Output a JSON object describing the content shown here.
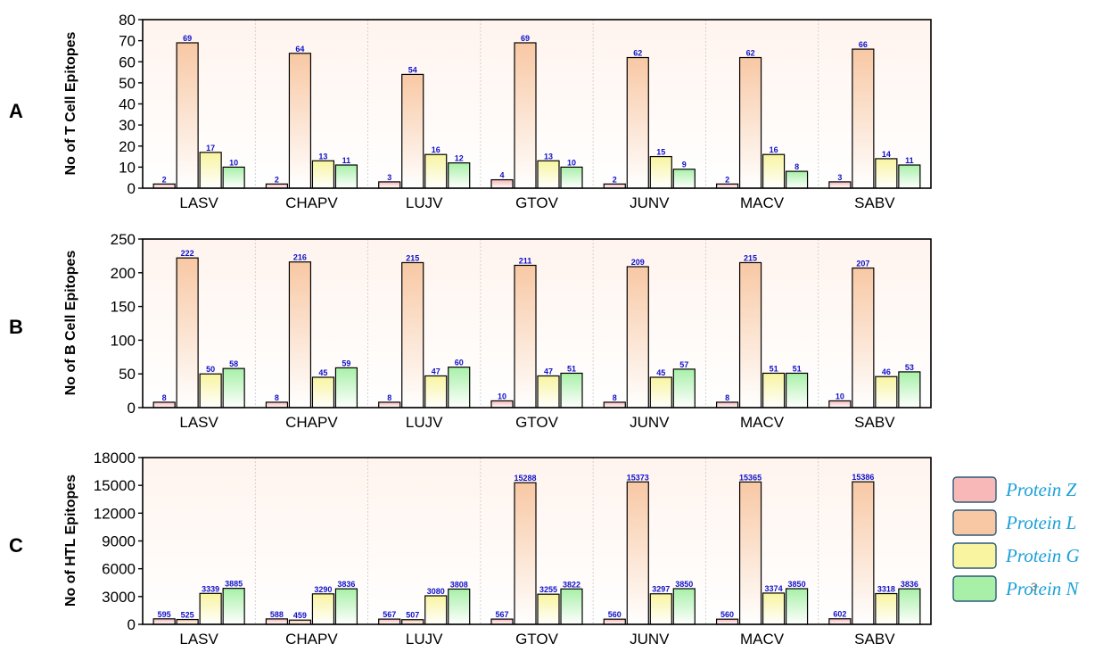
{
  "page_number": "3",
  "colors": {
    "Protein Z": "#f8b8b8",
    "Protein L": "#f8c8a4",
    "Protein G": "#f8f4a0",
    "Protein N": "#a8f0a8",
    "label": "#1010c8",
    "legend_text": "#1aa0d8"
  },
  "legend": [
    "Protein Z",
    "Protein L",
    "Protein G",
    "Protein N"
  ],
  "chart_data": [
    {
      "type": "bar",
      "panel": "A",
      "ylabel": "No of T Cell Epitopes",
      "categories": [
        "LASV",
        "CHAPV",
        "LUJV",
        "GTOV",
        "JUNV",
        "MACV",
        "SABV"
      ],
      "ylim": [
        0,
        80
      ],
      "yticks": [
        0,
        10,
        20,
        30,
        40,
        50,
        60,
        70,
        80
      ],
      "series": [
        {
          "name": "Protein Z",
          "values": [
            2,
            2,
            3,
            4,
            2,
            2,
            3
          ]
        },
        {
          "name": "Protein L",
          "values": [
            69,
            64,
            54,
            69,
            62,
            62,
            66
          ]
        },
        {
          "name": "Protein G",
          "values": [
            17,
            13,
            16,
            13,
            15,
            16,
            14
          ]
        },
        {
          "name": "Protein N",
          "values": [
            10,
            11,
            12,
            10,
            9,
            8,
            11
          ]
        }
      ]
    },
    {
      "type": "bar",
      "panel": "B",
      "ylabel": "No of B Cell Epitopes",
      "categories": [
        "LASV",
        "CHAPV",
        "LUJV",
        "GTOV",
        "JUNV",
        "MACV",
        "SABV"
      ],
      "ylim": [
        0,
        250
      ],
      "yticks": [
        0,
        50,
        100,
        150,
        200,
        250
      ],
      "series": [
        {
          "name": "Protein Z",
          "values": [
            8,
            8,
            8,
            10,
            8,
            8,
            10
          ]
        },
        {
          "name": "Protein L",
          "values": [
            222,
            216,
            215,
            211,
            209,
            215,
            207
          ]
        },
        {
          "name": "Protein G",
          "values": [
            50,
            45,
            47,
            47,
            45,
            51,
            46
          ]
        },
        {
          "name": "Protein N",
          "values": [
            58,
            59,
            60,
            51,
            57,
            51,
            53
          ]
        }
      ]
    },
    {
      "type": "bar",
      "panel": "C",
      "ylabel": "No of HTL Epitopes",
      "categories": [
        "LASV",
        "CHAPV",
        "LUJV",
        "GTOV",
        "JUNV",
        "MACV",
        "SABV"
      ],
      "ylim": [
        0,
        18000
      ],
      "yticks": [
        0,
        3000,
        6000,
        9000,
        12000,
        15000,
        18000
      ],
      "series": [
        {
          "name": "Protein Z",
          "values": [
            595,
            588,
            567,
            567,
            560,
            560,
            602
          ]
        },
        {
          "name": "Protein L",
          "values": [
            525,
            459,
            507,
            15288,
            15373,
            15365,
            15386
          ]
        },
        {
          "name": "Protein G",
          "values": [
            3339,
            3290,
            3080,
            3255,
            3297,
            3374,
            3318
          ]
        },
        {
          "name": "Protein N",
          "values": [
            3885,
            3836,
            3808,
            3822,
            3850,
            3850,
            3836
          ]
        }
      ]
    }
  ]
}
